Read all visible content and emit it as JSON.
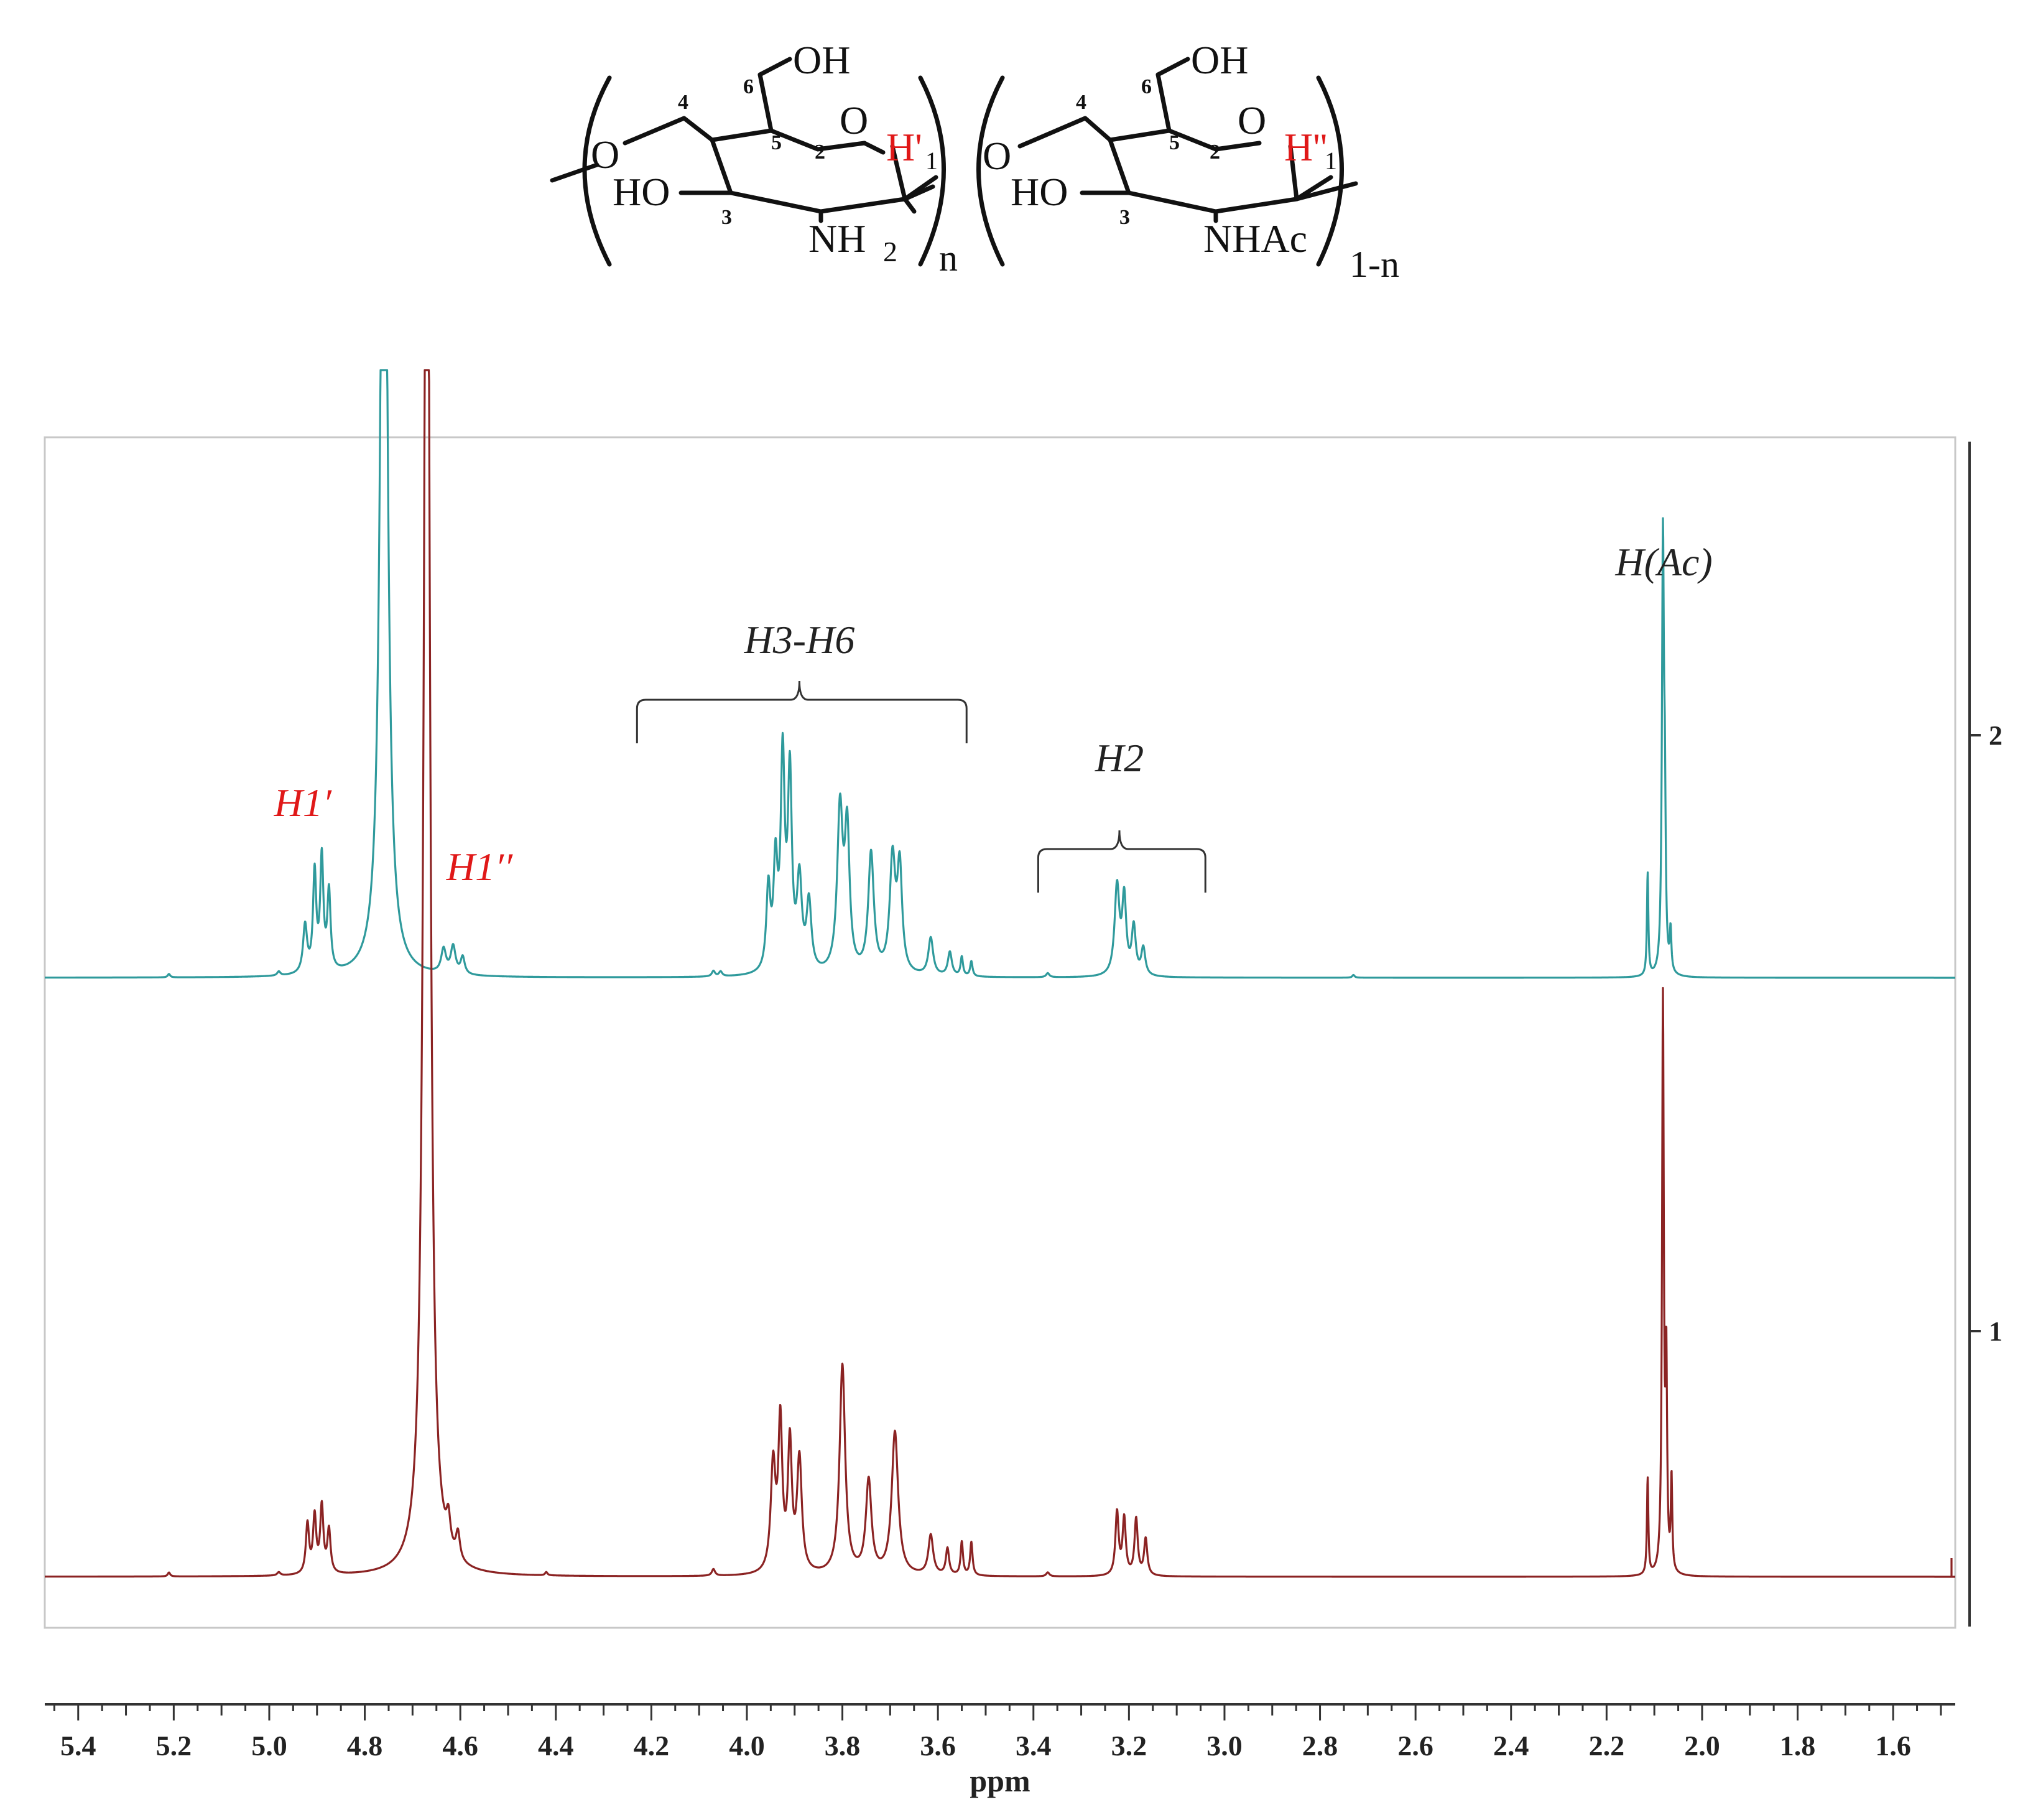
{
  "structure": {
    "unit1": {
      "oh_top": "OH",
      "ring_o": "O",
      "link_o": "O",
      "ho": "HO",
      "amine": "NH",
      "amine_sub": "2",
      "h_anomeric": "H'",
      "h_anomeric_sub": "1",
      "repeat": "n",
      "c2": "2",
      "c3": "3",
      "c4": "4",
      "c5": "5",
      "c6": "6"
    },
    "unit2": {
      "oh_top": "OH",
      "ring_o": "O",
      "link_o": "O",
      "ho": "HO",
      "amide": "NHAc",
      "h_anomeric": "H''",
      "h_anomeric_sub": "1",
      "repeat": "1-n",
      "c2": "2",
      "c3": "3",
      "c4": "4",
      "c5": "5",
      "c6": "6"
    }
  },
  "colors": {
    "trace_2": "#2f9a9c",
    "trace_1": "#8b2323",
    "label_red": "#e01818",
    "label_black": "#222222",
    "axis": "#333333",
    "frame": "#c8c8c8"
  },
  "chart_data": {
    "type": "line",
    "title": "",
    "xlabel": "ppm",
    "ylabel": "",
    "xlim": [
      5.47,
      1.47
    ],
    "x_reversed": true,
    "xticks": [
      5.4,
      5.2,
      5.0,
      4.8,
      4.6,
      4.4,
      4.2,
      4.0,
      3.8,
      3.6,
      3.4,
      3.2,
      3.0,
      2.8,
      2.6,
      2.4,
      2.2,
      2.0,
      1.8,
      1.6
    ],
    "xtick_labels": [
      "5.4",
      "5.2",
      "5.0",
      "4.8",
      "4.6",
      "4.4",
      "4.2",
      "4.0",
      "3.8",
      "3.6",
      "3.4",
      "3.2",
      "3.0",
      "2.8",
      "2.6",
      "2.4",
      "2.2",
      "2.0",
      "1.8",
      "1.6"
    ],
    "stack_labels": [
      "2",
      "1"
    ],
    "series": [
      {
        "name": "2",
        "baseline": 0.0,
        "peaks": [
          {
            "ppm": 5.21,
            "h": 0.005,
            "w": 0.003
          },
          {
            "ppm": 4.98,
            "h": 0.006,
            "w": 0.004
          },
          {
            "ppm": 4.925,
            "h": 0.07,
            "w": 0.005
          },
          {
            "ppm": 4.905,
            "h": 0.145,
            "w": 0.004
          },
          {
            "ppm": 4.89,
            "h": 0.165,
            "w": 0.004
          },
          {
            "ppm": 4.875,
            "h": 0.115,
            "w": 0.004
          },
          {
            "ppm": 4.76,
            "h": 1.6,
            "w": 0.008
          },
          {
            "ppm": 4.635,
            "h": 0.035,
            "w": 0.006
          },
          {
            "ppm": 4.615,
            "h": 0.04,
            "w": 0.006
          },
          {
            "ppm": 4.595,
            "h": 0.025,
            "w": 0.005
          },
          {
            "ppm": 4.07,
            "h": 0.008,
            "w": 0.004
          },
          {
            "ppm": 4.055,
            "h": 0.007,
            "w": 0.004
          },
          {
            "ppm": 3.955,
            "h": 0.12,
            "w": 0.005
          },
          {
            "ppm": 3.94,
            "h": 0.15,
            "w": 0.005
          },
          {
            "ppm": 3.925,
            "h": 0.305,
            "w": 0.005
          },
          {
            "ppm": 3.91,
            "h": 0.28,
            "w": 0.005
          },
          {
            "ppm": 3.89,
            "h": 0.13,
            "w": 0.006
          },
          {
            "ppm": 3.87,
            "h": 0.1,
            "w": 0.006
          },
          {
            "ppm": 3.805,
            "h": 0.235,
            "w": 0.007
          },
          {
            "ppm": 3.79,
            "h": 0.2,
            "w": 0.006
          },
          {
            "ppm": 3.74,
            "h": 0.175,
            "w": 0.007
          },
          {
            "ppm": 3.695,
            "h": 0.165,
            "w": 0.007
          },
          {
            "ppm": 3.68,
            "h": 0.15,
            "w": 0.006
          },
          {
            "ppm": 3.615,
            "h": 0.055,
            "w": 0.006
          },
          {
            "ppm": 3.575,
            "h": 0.035,
            "w": 0.005
          },
          {
            "ppm": 3.55,
            "h": 0.028,
            "w": 0.003
          },
          {
            "ppm": 3.53,
            "h": 0.022,
            "w": 0.003
          },
          {
            "ppm": 3.37,
            "h": 0.006,
            "w": 0.004
          },
          {
            "ppm": 3.225,
            "h": 0.13,
            "w": 0.006
          },
          {
            "ppm": 3.21,
            "h": 0.11,
            "w": 0.005
          },
          {
            "ppm": 3.19,
            "h": 0.07,
            "w": 0.005
          },
          {
            "ppm": 3.17,
            "h": 0.04,
            "w": 0.005
          },
          {
            "ppm": 2.73,
            "h": 0.004,
            "w": 0.003
          },
          {
            "ppm": 2.114,
            "h": 0.15,
            "w": 0.0018
          },
          {
            "ppm": 2.082,
            "h": 0.63,
            "w": 0.0025
          },
          {
            "ppm": 2.078,
            "h": 0.2,
            "w": 0.002
          },
          {
            "ppm": 2.066,
            "h": 0.06,
            "w": 0.002
          }
        ]
      },
      {
        "name": "1",
        "baseline": 0.0,
        "peaks": [
          {
            "ppm": 5.21,
            "h": 0.006,
            "w": 0.003
          },
          {
            "ppm": 4.98,
            "h": 0.005,
            "w": 0.004
          },
          {
            "ppm": 4.92,
            "h": 0.075,
            "w": 0.004
          },
          {
            "ppm": 4.905,
            "h": 0.085,
            "w": 0.004
          },
          {
            "ppm": 4.89,
            "h": 0.1,
            "w": 0.004
          },
          {
            "ppm": 4.875,
            "h": 0.065,
            "w": 0.004
          },
          {
            "ppm": 4.67,
            "h": 2.6,
            "w": 0.007
          },
          {
            "ppm": 4.625,
            "h": 0.045,
            "w": 0.005
          },
          {
            "ppm": 4.605,
            "h": 0.04,
            "w": 0.005
          },
          {
            "ppm": 4.42,
            "h": 0.005,
            "w": 0.003
          },
          {
            "ppm": 4.07,
            "h": 0.01,
            "w": 0.004
          },
          {
            "ppm": 3.945,
            "h": 0.16,
            "w": 0.006
          },
          {
            "ppm": 3.93,
            "h": 0.22,
            "w": 0.005
          },
          {
            "ppm": 3.91,
            "h": 0.19,
            "w": 0.005
          },
          {
            "ppm": 3.89,
            "h": 0.17,
            "w": 0.006
          },
          {
            "ppm": 3.8,
            "h": 0.315,
            "w": 0.007
          },
          {
            "ppm": 3.745,
            "h": 0.14,
            "w": 0.007
          },
          {
            "ppm": 3.69,
            "h": 0.215,
            "w": 0.008
          },
          {
            "ppm": 3.615,
            "h": 0.06,
            "w": 0.006
          },
          {
            "ppm": 3.58,
            "h": 0.04,
            "w": 0.004
          },
          {
            "ppm": 3.55,
            "h": 0.05,
            "w": 0.003
          },
          {
            "ppm": 3.53,
            "h": 0.05,
            "w": 0.003
          },
          {
            "ppm": 3.37,
            "h": 0.006,
            "w": 0.004
          },
          {
            "ppm": 3.225,
            "h": 0.095,
            "w": 0.004
          },
          {
            "ppm": 3.21,
            "h": 0.085,
            "w": 0.004
          },
          {
            "ppm": 3.185,
            "h": 0.085,
            "w": 0.004
          },
          {
            "ppm": 3.165,
            "h": 0.055,
            "w": 0.004
          },
          {
            "ppm": 2.114,
            "h": 0.145,
            "w": 0.0018
          },
          {
            "ppm": 2.082,
            "h": 0.86,
            "w": 0.0022
          },
          {
            "ppm": 2.075,
            "h": 0.3,
            "w": 0.002
          },
          {
            "ppm": 2.064,
            "h": 0.14,
            "w": 0.0018
          }
        ]
      }
    ],
    "annotations": [
      {
        "text": "H1′",
        "ppm": 4.93,
        "color": "red",
        "series": "2"
      },
      {
        "text": "H1′′",
        "ppm": 4.56,
        "color": "red",
        "series": "2"
      },
      {
        "text": "H3-H6",
        "ppm": 3.89,
        "bracket": [
          4.23,
          3.54
        ],
        "series": "2"
      },
      {
        "text": "H2",
        "ppm": 3.22,
        "bracket": [
          3.39,
          3.04
        ],
        "series": "2"
      },
      {
        "text": "H(Ac)",
        "ppm": 2.08,
        "series": "2"
      }
    ]
  }
}
